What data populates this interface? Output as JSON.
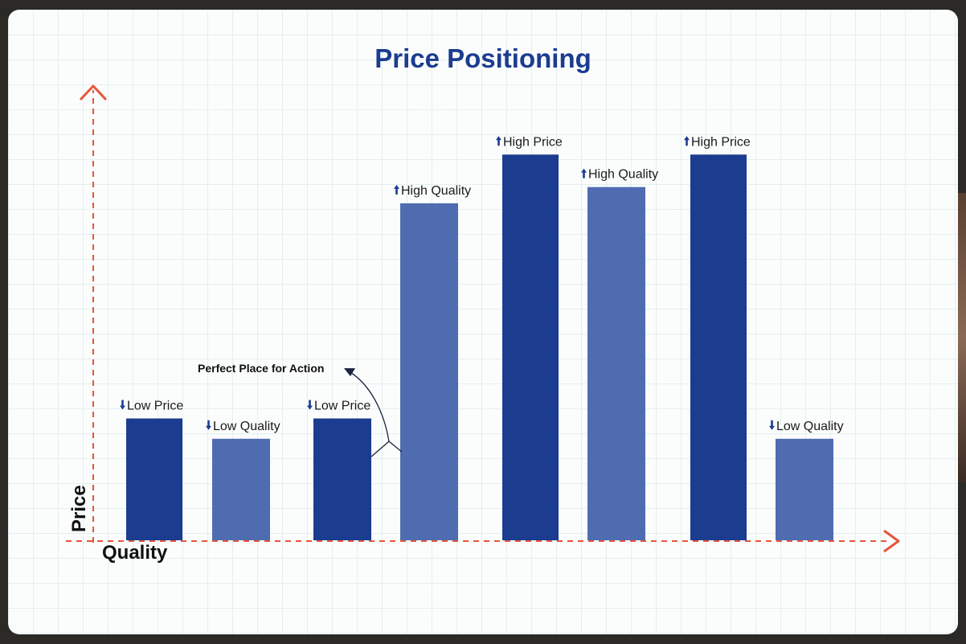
{
  "chart_data": {
    "type": "bar",
    "title": "Price Positioning",
    "xlabel": "Quality",
    "ylabel": "Price",
    "ylim": [
      0,
      100
    ],
    "grid": true,
    "bars": [
      {
        "label": "Low Price",
        "arrow": "down",
        "value": 30,
        "kind": "price"
      },
      {
        "label": "Low Quality",
        "arrow": "down",
        "value": 25,
        "kind": "quality"
      },
      {
        "label": "Low Price",
        "arrow": "down",
        "value": 30,
        "kind": "price"
      },
      {
        "label": "High Quality",
        "arrow": "up",
        "value": 83,
        "kind": "quality"
      },
      {
        "label": "High Price",
        "arrow": "up",
        "value": 95,
        "kind": "price"
      },
      {
        "label": "High Quality",
        "arrow": "up",
        "value": 87,
        "kind": "quality"
      },
      {
        "label": "High Price",
        "arrow": "up",
        "value": 95,
        "kind": "price"
      },
      {
        "label": "Low Quality",
        "arrow": "down",
        "value": 25,
        "kind": "quality"
      }
    ],
    "annotation": {
      "text": "Perfect Place for Action"
    },
    "colors": {
      "price": "#1b3c8f",
      "quality": "#4f6cb1",
      "axis": "#e8553a",
      "title": "#1b3c8f"
    }
  }
}
